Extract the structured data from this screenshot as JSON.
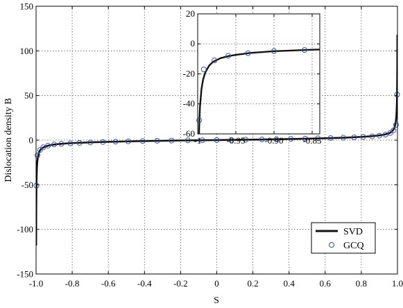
{
  "chart_data": {
    "type": "line",
    "title": "",
    "xlabel": "S",
    "ylabel": "Dislocation density B",
    "xlim": [
      -1.0,
      1.0
    ],
    "ylim": [
      -150,
      150
    ],
    "xticks": [
      "-1.0",
      "-0.8",
      "-0.6",
      "-0.4",
      "-0.2",
      "0",
      "0.2",
      "0.4",
      "0.6",
      "0.8",
      "1.0"
    ],
    "xtick_values": [
      -1.0,
      -0.8,
      -0.6,
      -0.4,
      -0.2,
      0,
      0.2,
      0.4,
      0.6,
      0.8,
      1.0
    ],
    "yticks": [
      "-150",
      "-100",
      "-50",
      "0",
      "50",
      "100",
      "150"
    ],
    "ytick_values": [
      -150,
      -100,
      -50,
      0,
      50,
      100,
      150
    ],
    "grid": true,
    "legend_position": "bottom-right",
    "series": [
      {
        "name": "SVD",
        "style": "line",
        "color": "#111111",
        "x": [
          -0.9995,
          -0.999,
          -0.998,
          -0.997,
          -0.995,
          -0.993,
          -0.99,
          -0.985,
          -0.98,
          -0.97,
          -0.96,
          -0.95,
          -0.93,
          -0.9,
          -0.85,
          -0.8,
          -0.7,
          -0.6,
          -0.5,
          -0.4,
          -0.3,
          -0.2,
          -0.1,
          0,
          0.1,
          0.2,
          0.3,
          0.4,
          0.5,
          0.6,
          0.7,
          0.8,
          0.85,
          0.9,
          0.93,
          0.95,
          0.96,
          0.97,
          0.98,
          0.985,
          0.99,
          0.993,
          0.995,
          0.997,
          0.998,
          0.999,
          0.9995
        ],
        "y": [
          -118,
          -80,
          -55,
          -42,
          -30,
          -24,
          -19,
          -14.5,
          -12,
          -9.5,
          -8.2,
          -7.3,
          -6.0,
          -4.9,
          -3.9,
          -3.3,
          -2.5,
          -1.9,
          -1.45,
          -1.05,
          -0.7,
          -0.4,
          -0.15,
          0.05,
          0.3,
          0.55,
          0.85,
          1.2,
          1.6,
          2.1,
          2.7,
          3.6,
          4.3,
          5.3,
          6.3,
          7.4,
          8.3,
          9.7,
          12.3,
          14.8,
          19.5,
          25,
          31,
          43,
          56,
          82,
          118
        ]
      },
      {
        "name": "GCQ",
        "style": "marker-circle",
        "color": "#3a4fa0",
        "x": [
          -0.998,
          -0.992,
          -0.978,
          -0.96,
          -0.934,
          -0.9,
          -0.86,
          -0.81,
          -0.76,
          -0.7,
          -0.63,
          -0.56,
          -0.49,
          -0.41,
          -0.33,
          -0.25,
          -0.16,
          -0.08,
          0,
          0.08,
          0.16,
          0.25,
          0.33,
          0.41,
          0.49,
          0.56,
          0.63,
          0.7,
          0.76,
          0.81,
          0.86,
          0.9,
          0.934,
          0.96,
          0.978,
          0.992,
          0.998
        ],
        "y": [
          -51,
          -17,
          -11,
          -8,
          -6.2,
          -4.8,
          -4.1,
          -3.6,
          -3.1,
          -2.6,
          -2.1,
          -1.7,
          -1.4,
          -1.05,
          -0.75,
          -0.5,
          -0.2,
          -0.05,
          0.05,
          0.2,
          0.45,
          0.75,
          1.05,
          1.35,
          1.65,
          2.0,
          2.3,
          2.7,
          3.1,
          3.6,
          4.2,
          5.0,
          6.2,
          8.0,
          11,
          17,
          51
        ]
      }
    ],
    "inset": {
      "xlim": [
        -1.0,
        -0.84
      ],
      "ylim": [
        -60,
        20
      ],
      "xticks": [
        "-1",
        "-0.95",
        "-0.90",
        "-0.85"
      ],
      "xtick_values": [
        -1.0,
        -0.95,
        -0.9,
        -0.85
      ],
      "yticks": [
        "-60",
        "-40",
        "-20",
        "0",
        "20"
      ],
      "ytick_values": [
        -60,
        -40,
        -20,
        0,
        20
      ],
      "grid": true
    }
  }
}
